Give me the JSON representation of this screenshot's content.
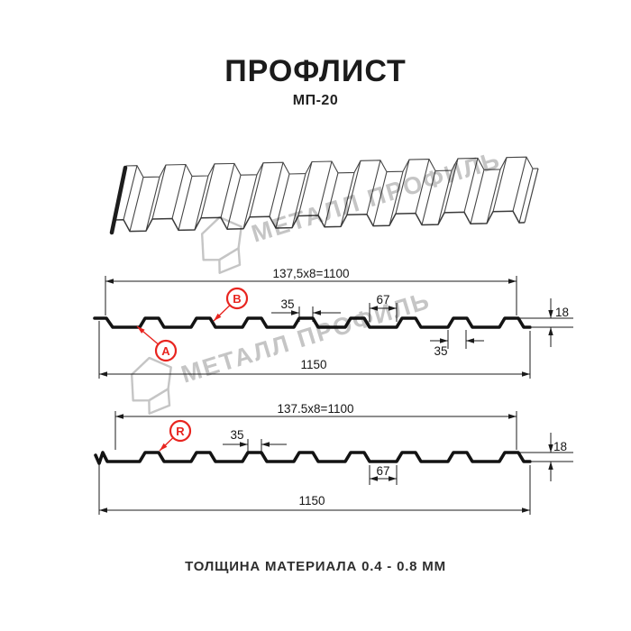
{
  "header": {
    "title": "ПРОФЛИСТ",
    "subtitle": "МП-20"
  },
  "footer": {
    "text": "ТОЛЩИНА МАТЕРИАЛА 0.4 - 0.8 ММ"
  },
  "watermark": {
    "text": "МЕТАЛЛ ПРОФИЛЬ",
    "color": "#c5c5c5"
  },
  "colors": {
    "line": "#1b1b1b",
    "accent_red": "#e8241f",
    "sheet_line": "#454545"
  },
  "diagram_a_b": {
    "pitch_total": "137,5x8=1100",
    "overall_width": "1150",
    "rib_top_width": "35",
    "rib_base_width": "35",
    "valley_width": "67",
    "height": "18",
    "marker_a": "A",
    "marker_b": "B"
  },
  "diagram_r": {
    "pitch_total": "137.5x8=1100",
    "overall_width": "1150",
    "rib_top_width": "35",
    "valley_width": "67",
    "height": "18",
    "marker_r": "R"
  }
}
